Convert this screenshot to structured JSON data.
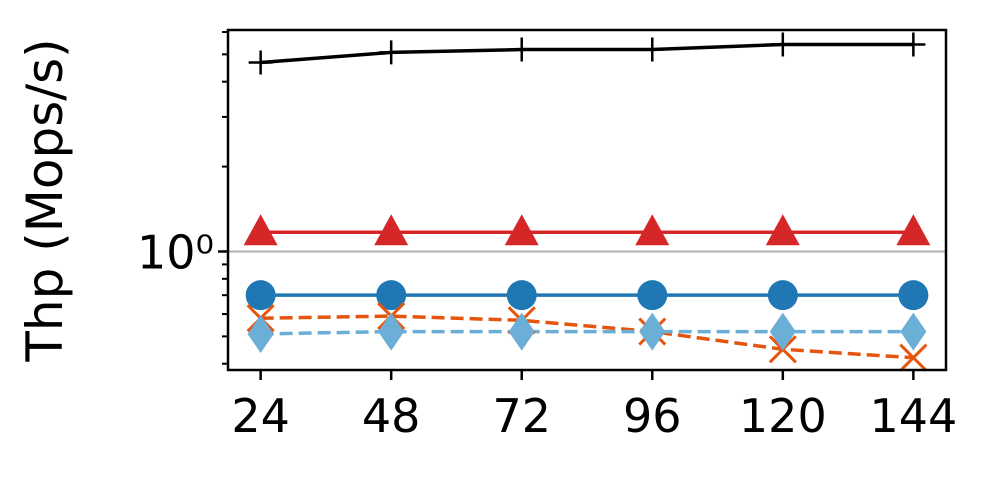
{
  "chart_data": {
    "type": "line",
    "y_label": "Thp (Mops/s)",
    "x": [
      24,
      48,
      72,
      96,
      120,
      144
    ],
    "xlim": [
      18,
      150
    ],
    "xticks": [
      24,
      48,
      72,
      96,
      120,
      144
    ],
    "ylim": [
      0.38,
      6.1
    ],
    "yscale": "log",
    "yticks": [
      {
        "value": 1,
        "label": "10⁰"
      }
    ],
    "yminorticks": [
      0.4,
      0.5,
      0.6,
      0.7,
      0.8,
      0.9,
      2,
      3,
      4,
      5,
      6
    ],
    "grid": true,
    "series": [
      {
        "color": "#000000",
        "marker": "plus",
        "linestyle": "solid",
        "values": [
          4.68,
          5.08,
          5.2,
          5.2,
          5.42,
          5.42
        ]
      },
      {
        "color": "#d62728",
        "marker": "triangle",
        "linestyle": "solid",
        "values": [
          1.17,
          1.17,
          1.17,
          1.17,
          1.17,
          1.17
        ]
      },
      {
        "color": "#1f77b4",
        "marker": "circle",
        "linestyle": "solid",
        "values": [
          0.7,
          0.7,
          0.7,
          0.7,
          0.7,
          0.7
        ]
      },
      {
        "color": "#e6550d",
        "marker": "x",
        "linestyle": "dashed",
        "values": [
          0.58,
          0.59,
          0.57,
          0.52,
          0.45,
          0.42
        ]
      },
      {
        "color": "#6baed6",
        "marker": "diamond",
        "linestyle": "dashed",
        "values": [
          0.51,
          0.52,
          0.52,
          0.52,
          0.52,
          0.52
        ]
      }
    ]
  }
}
